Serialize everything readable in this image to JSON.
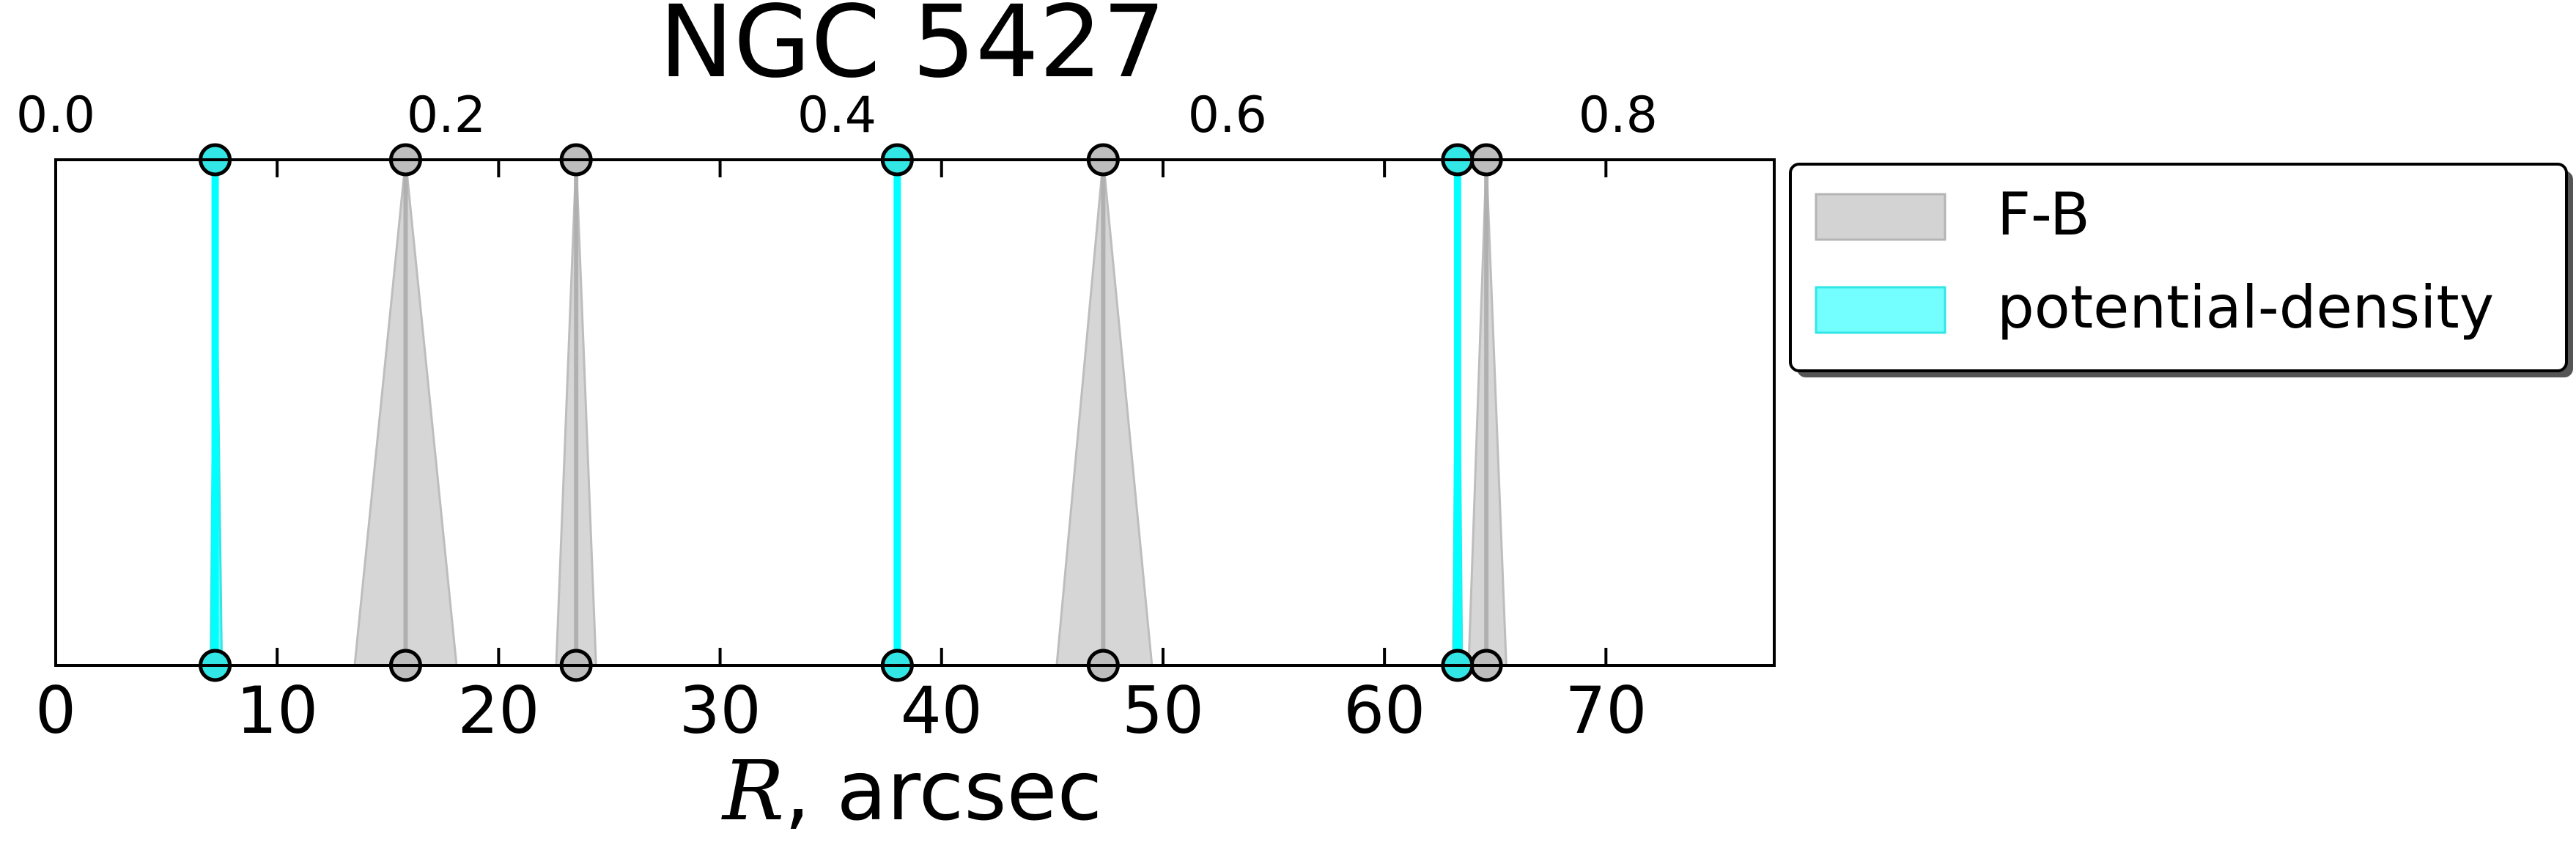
{
  "chart_data": {
    "type": "area",
    "title": "NGC 5427",
    "xlabel_var": "R",
    "xlabel_rest": ", arcsec",
    "xlim": [
      0,
      77.6
    ],
    "xticks": [
      0,
      10,
      20,
      30,
      40,
      50,
      60,
      70
    ],
    "top_axis": {
      "ticks": [
        0.0,
        0.2,
        0.4,
        0.6,
        0.8
      ],
      "tick_labels": [
        "0.0",
        "0.2",
        "0.4",
        "0.6",
        "0.8"
      ],
      "xlim": [
        0.0,
        0.88
      ]
    },
    "series": [
      {
        "name": "F-B",
        "color": "#c8c8c8",
        "marker_color": "#bdbdbd",
        "features": [
          {
            "center": 15.8,
            "lower": 13.5,
            "upper": 18.1
          },
          {
            "center": 23.5,
            "lower": 22.6,
            "upper": 24.4
          },
          {
            "center": 47.3,
            "lower": 45.2,
            "upper": 49.5
          },
          {
            "center": 64.6,
            "lower": 63.8,
            "upper": 65.5
          }
        ]
      },
      {
        "name": "potential-density",
        "color": "#00ffff",
        "marker_color": "#33e6e6",
        "features": [
          {
            "center": 7.2,
            "lower": 7.0,
            "upper": 7.5
          },
          {
            "center": 38.0,
            "lower": 37.9,
            "upper": 38.1
          },
          {
            "center": 63.3,
            "lower": 63.1,
            "upper": 63.5
          }
        ]
      }
    ],
    "legend": {
      "position": "outside-right",
      "entries": [
        "F-B",
        "potential-density"
      ]
    }
  }
}
